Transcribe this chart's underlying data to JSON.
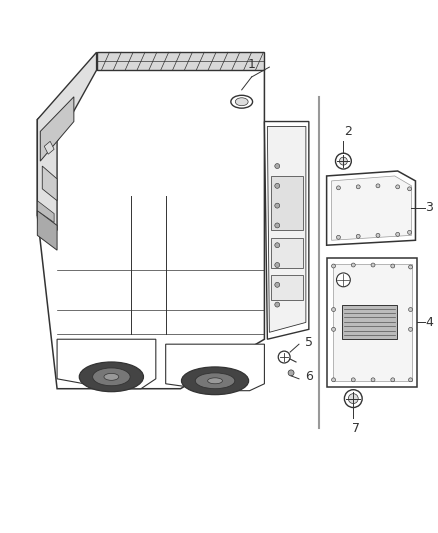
{
  "background_color": "#ffffff",
  "figure_size": [
    4.38,
    5.33
  ],
  "dpi": 100,
  "line_color": "#333333",
  "light_gray": "#999999",
  "dark_gray": "#555555",
  "mid_gray": "#aaaaaa",
  "label_color": "#333333"
}
